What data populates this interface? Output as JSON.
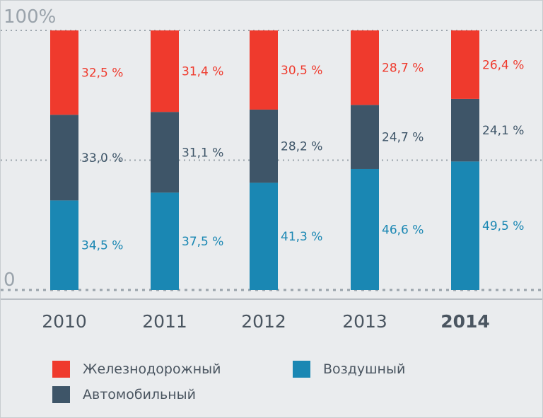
{
  "chart_data": {
    "type": "bar",
    "stacked": true,
    "categories": [
      "2010",
      "2011",
      "2012",
      "2013",
      "2014"
    ],
    "highlight_category": "2014",
    "ylim": [
      0,
      100
    ],
    "ytick_labels": [
      "0",
      "100%"
    ],
    "grid": true,
    "series": [
      {
        "name": "Воздушный",
        "color": "#1a87b3",
        "values": [
          34.5,
          37.5,
          41.3,
          46.6,
          49.5
        ],
        "labels": [
          "34,5 %",
          "37,5 %",
          "41,3 %",
          "46,6 %",
          "49,5 %"
        ]
      },
      {
        "name": "Автомобильный",
        "color": "#3e5568",
        "values": [
          33.0,
          31.1,
          28.2,
          24.7,
          24.1
        ],
        "labels": [
          "33,0 %",
          "31,1 %",
          "28,2 %",
          "24,7 %",
          "24,1 %"
        ]
      },
      {
        "name": "Железнодорожный",
        "color": "#ef3a2d",
        "values": [
          32.5,
          31.4,
          30.5,
          28.7,
          26.4
        ],
        "labels": [
          "32,5 %",
          "31,4 %",
          "30,5 %",
          "28,7 %",
          "26,4 %"
        ]
      }
    ],
    "legend": {
      "placement": "bottom",
      "items": [
        {
          "label": "Железнодорожный",
          "color": "#ef3a2d"
        },
        {
          "label": "Воздушный",
          "color": "#1a87b3"
        },
        {
          "label": "Автомобильный",
          "color": "#3e5568"
        }
      ]
    }
  }
}
